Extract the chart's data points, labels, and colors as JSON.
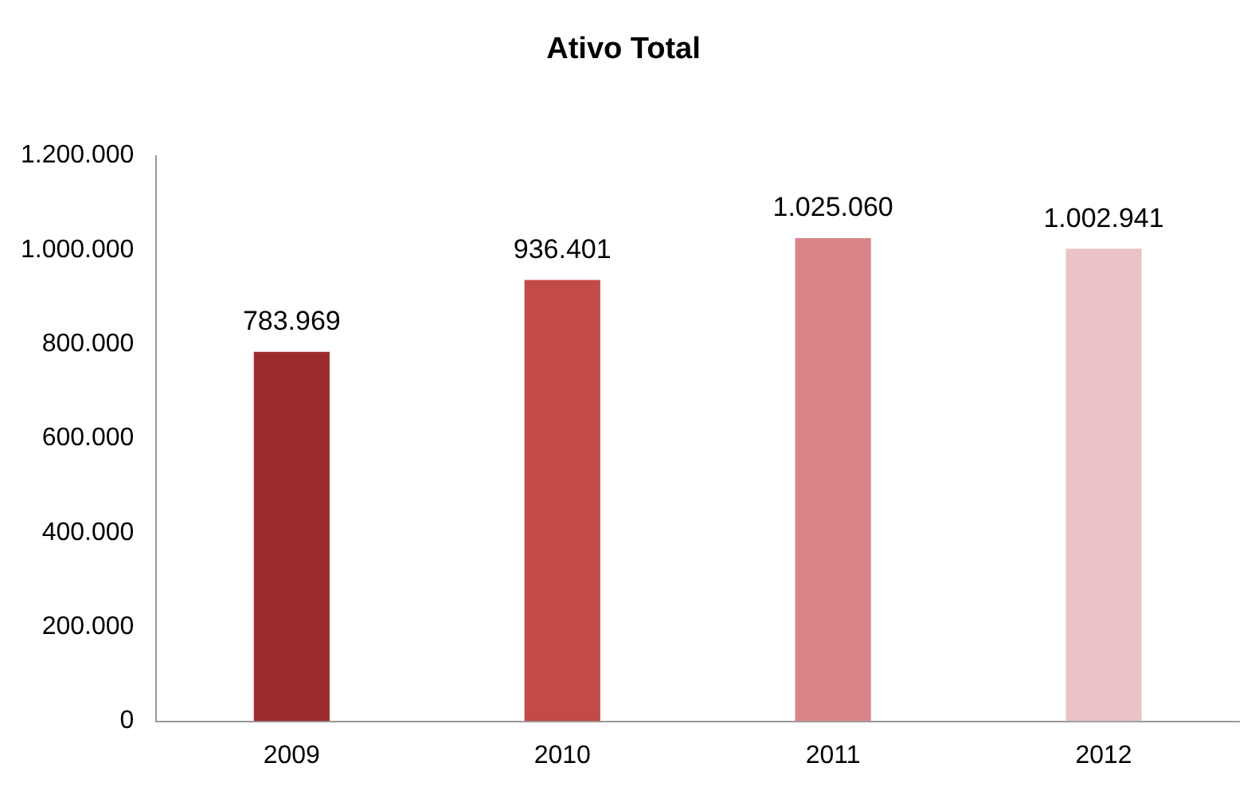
{
  "chart_data": {
    "type": "bar",
    "title": "Ativo Total",
    "categories": [
      "2009",
      "2010",
      "2011",
      "2012"
    ],
    "values": [
      783969,
      936401,
      1025060,
      1002941
    ],
    "colors": [
      "#9e2b2c",
      "#c24a47",
      "#d98588",
      "#ebc3c7"
    ],
    "value_labels": [
      "783.969",
      "936.401",
      "1.025.060",
      "1.002.941"
    ],
    "ylim": [
      0,
      1200000
    ],
    "yticks": [
      {
        "value": 0,
        "label": "0"
      },
      {
        "value": 200000,
        "label": "200.000"
      },
      {
        "value": 400000,
        "label": "400.000"
      },
      {
        "value": 600000,
        "label": "600.000"
      },
      {
        "value": 800000,
        "label": "800.000"
      },
      {
        "value": 1000000,
        "label": "1.000.000"
      },
      {
        "value": 1200000,
        "label": "1.200.000"
      }
    ],
    "grid": false,
    "legend": false
  }
}
